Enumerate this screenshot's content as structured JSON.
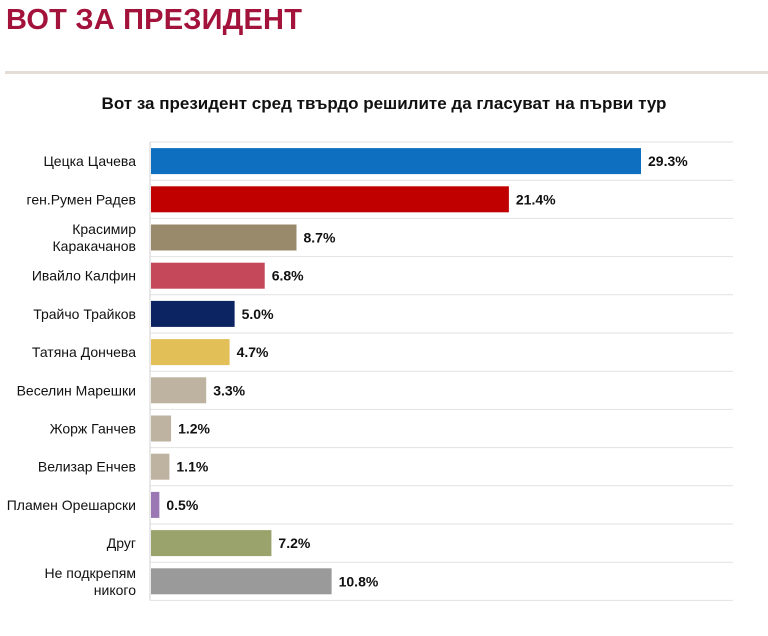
{
  "header": {
    "title": "ВОТ ЗА ПРЕЗИДЕНТ"
  },
  "chart_data": {
    "type": "bar",
    "orientation": "horizontal",
    "title": "Вот за президент сред твърдо решилите да гласуват на първи тур",
    "xlabel": "",
    "ylabel": "",
    "grid": "horizontal separators",
    "legend": "none",
    "categories": [
      "Цецка Цачева",
      "ген.Румен Радев",
      "Красимир Каракачанов",
      "Ивайло Калфин",
      "Трайчо Трайков",
      "Татяна Дончева",
      "Веселин Марешки",
      "Жорж Ганчев",
      "Велизар Енчев",
      "Пламен Орешарски",
      "Друг",
      "Не подкрепям никого"
    ],
    "category_lines": [
      [
        "Цецка Цачева"
      ],
      [
        "ген.Румен Радев"
      ],
      [
        "Красимир",
        "Каракачанов"
      ],
      [
        "Ивайло Калфин"
      ],
      [
        "Трайчо Трайков"
      ],
      [
        "Татяна Дончева"
      ],
      [
        "Веселин Марешки"
      ],
      [
        "Жорж Ганчев"
      ],
      [
        "Велизар Енчев"
      ],
      [
        "Пламен Орешарски"
      ],
      [
        "Друг"
      ],
      [
        "Не подкрепям",
        "никого"
      ]
    ],
    "values": [
      29.3,
      21.4,
      8.7,
      6.8,
      5.0,
      4.7,
      3.3,
      1.2,
      1.1,
      0.5,
      7.2,
      10.8
    ],
    "value_labels": [
      "29.3%",
      "21.4%",
      "8.7%",
      "6.8%",
      "5.0%",
      "4.7%",
      "3.3%",
      "1.2%",
      "1.1%",
      "0.5%",
      "7.2%",
      "10.8%"
    ],
    "colors": [
      "#0e6fc1",
      "#c00000",
      "#9a8a6c",
      "#c4475a",
      "#0c2461",
      "#e3bf57",
      "#bdb3a0",
      "#bdb3a0",
      "#bdb3a0",
      "#9b78b4",
      "#9aa36b",
      "#9a9a9a"
    ],
    "xlim": [
      0,
      30
    ]
  }
}
